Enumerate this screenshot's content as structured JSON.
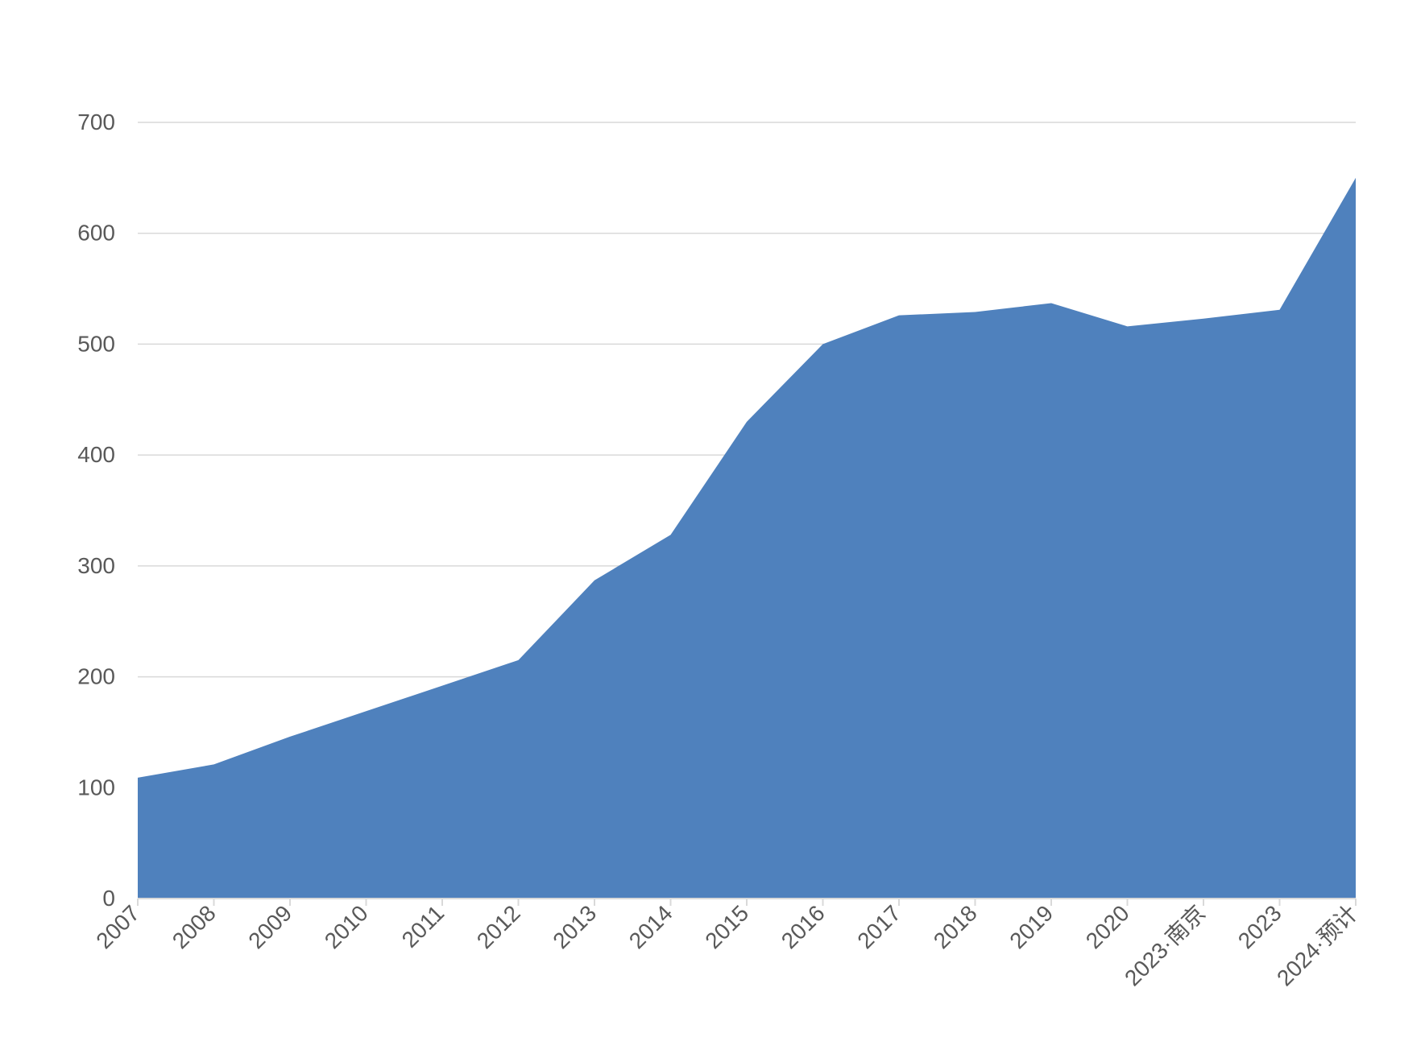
{
  "chart_data": {
    "type": "area",
    "title": "",
    "xlabel": "",
    "ylabel": "",
    "categories": [
      "2007",
      "2008",
      "2009",
      "2010",
      "2011",
      "2012",
      "2013",
      "2014",
      "2015",
      "2016",
      "2017",
      "2018",
      "2019",
      "2020",
      "2023·南京",
      "2023",
      "2024·预计"
    ],
    "series": [
      {
        "values": [
          109,
          121,
          146,
          169,
          192,
          215,
          287,
          328,
          430,
          500,
          526,
          529,
          537,
          516,
          523,
          531,
          650
        ]
      }
    ],
    "ylim": [
      0,
      700
    ],
    "yticks": [
      0,
      100,
      200,
      300,
      400,
      500,
      600,
      700
    ],
    "grid": true,
    "legend": "none",
    "colors": {
      "area": "#4f81bd",
      "grid": "#d9d9d9",
      "axis": "#d9d9d9",
      "text": "#595959"
    }
  }
}
